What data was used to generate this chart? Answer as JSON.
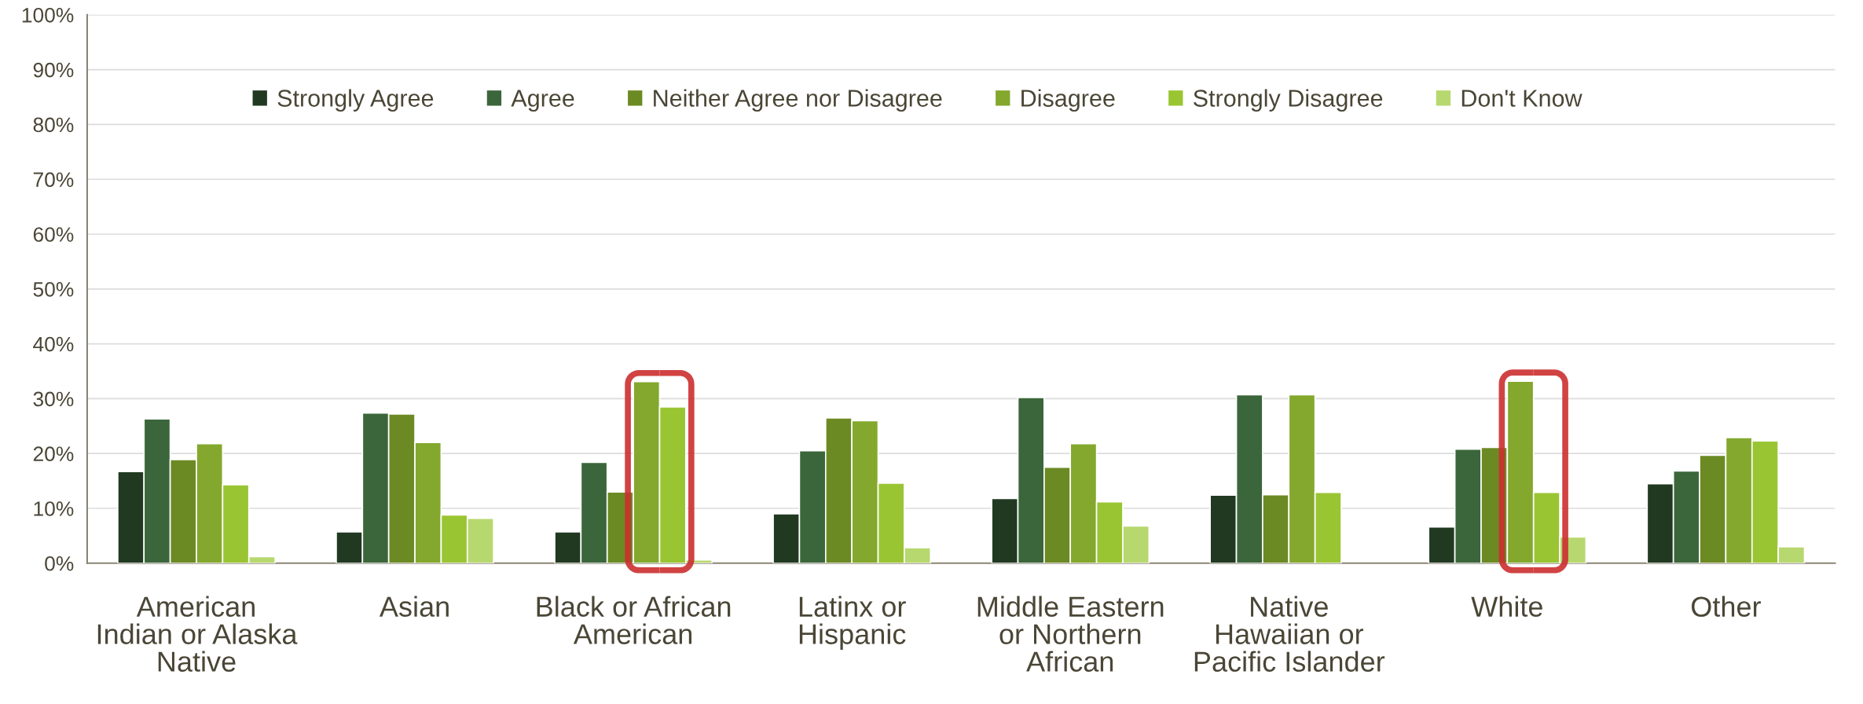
{
  "chart_data": {
    "type": "bar",
    "categories": [
      "American\nIndian or Alaska\nNative",
      "Asian",
      "Black or African\nAmerican",
      "Latinx or\nHispanic",
      "Middle Eastern\nor Northern\nAfrican",
      "Native\nHawaiian or\nPacific Islander",
      "White",
      "Other"
    ],
    "series": [
      {
        "name": "Strongly Agree",
        "color": "#213921",
        "values": [
          16.7,
          5.7,
          5.7,
          9.0,
          11.8,
          12.4,
          6.6,
          14.5
        ]
      },
      {
        "name": "Agree",
        "color": "#3b663b",
        "values": [
          26.3,
          27.4,
          18.4,
          20.5,
          30.2,
          30.7,
          20.8,
          16.8
        ]
      },
      {
        "name": "Neither Agree nor Disagree",
        "color": "#6c8a24",
        "values": [
          18.9,
          27.2,
          13.0,
          26.5,
          17.5,
          12.5,
          21.1,
          19.7
        ]
      },
      {
        "name": "Disagree",
        "color": "#83a82d",
        "values": [
          21.8,
          22.0,
          33.1,
          26.0,
          21.8,
          30.7,
          33.2,
          22.9
        ]
      },
      {
        "name": "Strongly Disagree",
        "color": "#9ac533",
        "values": [
          14.3,
          8.8,
          28.5,
          14.6,
          11.2,
          12.9,
          12.9,
          22.3
        ]
      },
      {
        "name": "Don't Know",
        "color": "#b7d86f",
        "values": [
          1.2,
          8.2,
          0.6,
          2.8,
          6.8,
          null,
          4.8,
          3.0
        ]
      }
    ],
    "ylim": [
      0,
      100
    ],
    "yticks": [
      {
        "value": 0,
        "label": "0%"
      },
      {
        "value": 10,
        "label": "10%"
      },
      {
        "value": 20,
        "label": "20%"
      },
      {
        "value": 30,
        "label": "30%"
      },
      {
        "value": 40,
        "label": "40%"
      },
      {
        "value": 50,
        "label": "50%"
      },
      {
        "value": 60,
        "label": "60%"
      },
      {
        "value": 70,
        "label": "70%"
      },
      {
        "value": 80,
        "label": "80%"
      },
      {
        "value": 90,
        "label": "90%"
      },
      {
        "value": 100,
        "label": "100%"
      }
    ],
    "grid": "y",
    "legend": "top"
  }
}
